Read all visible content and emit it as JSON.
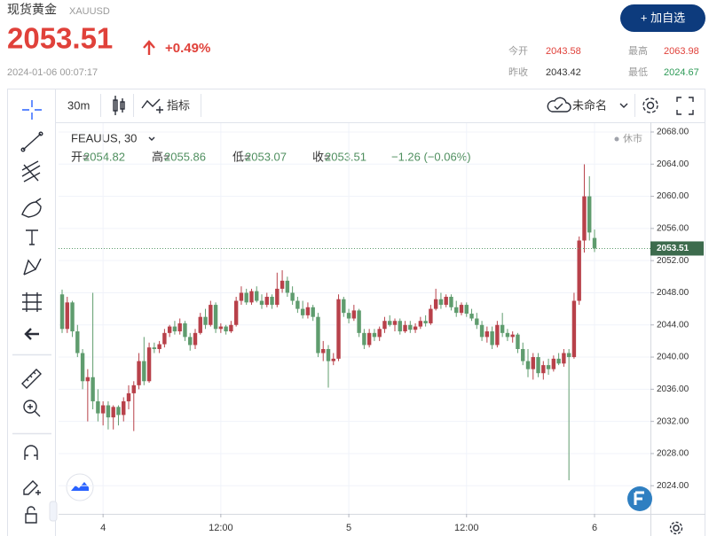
{
  "header": {
    "title": "现货黄金",
    "symbol": "XAUUSD",
    "price": 2053.51,
    "change": "+0.49%",
    "timestamp": "2024-01-06 00:07:17",
    "button": "+ 加自选",
    "stats": [
      {
        "label": "今开",
        "value": 2043.58
      },
      {
        "label": "最高",
        "value": 2063.98
      },
      {
        "label": "昨收",
        "value": 2043.42
      },
      {
        "label": "最低",
        "value": 2024.67
      }
    ]
  },
  "toolbar": {
    "interval": "30m",
    "indicators": "指标",
    "layout": "未命名"
  },
  "chart_data": {
    "type": "candlestick",
    "symbol_label": "FEAUUS, 30",
    "status": "休市",
    "legend_labels": [
      "开=",
      "高=",
      "低=",
      "收="
    ],
    "change_text": "−1.26 (−0.06%)",
    "up_color": "#b8414a",
    "down_color": "#5f9c6e",
    "grid": true,
    "ylim": [
      2020.5,
      2069.1
    ],
    "yticks": [
      {
        "value": 2024,
        "label": "2024.00"
      },
      {
        "value": 2028,
        "label": "2028.00"
      },
      {
        "value": 2032,
        "label": "2032.00"
      },
      {
        "value": 2036,
        "label": "2036.00"
      },
      {
        "value": 2040,
        "label": "2040.00"
      },
      {
        "value": 2044,
        "label": "2044.00"
      },
      {
        "value": 2048,
        "label": "2048.00"
      },
      {
        "value": 2052,
        "label": "2052.00"
      },
      {
        "value": 2056,
        "label": "2056.00"
      },
      {
        "value": 2060,
        "label": "2060.00"
      },
      {
        "value": 2064,
        "label": "2064.00"
      },
      {
        "value": 2068,
        "label": "2068.00"
      }
    ],
    "categories": [
      null,
      null,
      null,
      null,
      null,
      null,
      null,
      null,
      "4",
      null,
      null,
      null,
      null,
      null,
      null,
      null,
      null,
      null,
      null,
      null,
      null,
      null,
      null,
      null,
      null,
      null,
      null,
      null,
      null,
      null,
      null,
      "12:00",
      null,
      null,
      null,
      null,
      null,
      null,
      null,
      null,
      null,
      null,
      null,
      null,
      null,
      null,
      null,
      null,
      null,
      null,
      null,
      null,
      null,
      null,
      null,
      null,
      "5",
      null,
      null,
      null,
      null,
      null,
      null,
      null,
      null,
      null,
      null,
      null,
      null,
      null,
      null,
      null,
      null,
      null,
      null,
      null,
      null,
      null,
      null,
      "12:00",
      null,
      null,
      null,
      null,
      null,
      null,
      null,
      null,
      null,
      null,
      null,
      null,
      null,
      null,
      null,
      null,
      null,
      null,
      null,
      null,
      null,
      null,
      null,
      null,
      "6"
    ],
    "open": [
      2047.8,
      2043.5,
      2046.8,
      2043.2,
      2040.5,
      2037.0,
      2037.5,
      2034.5,
      2033.0,
      2034.0,
      2032.5,
      2033.8,
      2032.8,
      2034.5,
      2035.5,
      2036.5,
      2039.5,
      2037.0,
      2041.2,
      2041.0,
      2041.6,
      2043.0,
      2043.8,
      2043.2,
      2044.2,
      2042.5,
      2041.5,
      2043.0,
      2045.0,
      2044.0,
      2046.5,
      2043.5,
      2043.8,
      2043.2,
      2044.0,
      2047.0,
      2048.0,
      2046.8,
      2048.2,
      2047.0,
      2046.5,
      2047.5,
      2046.5,
      2048.5,
      2049.5,
      2048.0,
      2047.0,
      2046.0,
      2045.2,
      2046.2,
      2045.0,
      2040.5,
      2041.0,
      2039.5,
      2039.8,
      2047.2,
      2045.5,
      2044.8,
      2045.8,
      2043.0,
      2041.5,
      2043.0,
      2042.5,
      2043.5,
      2044.5,
      2044.0,
      2044.5,
      2043.2,
      2044.0,
      2043.4,
      2043.8,
      2044.5,
      2044.2,
      2046.0,
      2047.2,
      2046.5,
      2047.5,
      2046.2,
      2045.5,
      2046.5,
      2045.4,
      2044.8,
      2044.0,
      2042.5,
      2043.2,
      2041.5,
      2044.0,
      2043.0,
      2042.5,
      2042.8,
      2041.0,
      2039.5,
      2038.5,
      2040.0,
      2038.0,
      2039.0,
      2038.5,
      2039.8,
      2039.2,
      2040.5,
      2040.0,
      2047.0,
      2054.5,
      2060.0,
      2054.82
    ],
    "high": [
      2048.4,
      2047.5,
      2047.0,
      2044.0,
      2041.0,
      2038.5,
      2048.0,
      2036.0,
      2034.5,
      2034.5,
      2034.0,
      2034.0,
      2035.0,
      2036.5,
      2037.0,
      2040.5,
      2042.5,
      2041.8,
      2041.8,
      2042.0,
      2043.5,
      2044.0,
      2044.5,
      2044.8,
      2044.5,
      2043.0,
      2043.5,
      2045.5,
      2046.0,
      2047.0,
      2046.8,
      2044.2,
      2044.0,
      2044.5,
      2047.5,
      2048.8,
      2048.5,
      2048.5,
      2048.8,
      2047.8,
      2048.0,
      2047.8,
      2050.5,
      2050.8,
      2050.0,
      2048.8,
      2047.5,
      2047.0,
      2046.8,
      2046.5,
      2045.5,
      2042.0,
      2041.5,
      2040.5,
      2047.8,
      2047.5,
      2046.0,
      2046.5,
      2046.0,
      2043.5,
      2043.5,
      2043.5,
      2043.8,
      2045.0,
      2045.2,
      2044.8,
      2044.8,
      2044.5,
      2044.5,
      2044.2,
      2045.0,
      2045.2,
      2046.5,
      2048.5,
      2048.0,
      2047.8,
      2047.8,
      2047.0,
      2046.8,
      2046.8,
      2046.0,
      2045.5,
      2044.5,
      2043.8,
      2043.8,
      2044.5,
      2045.5,
      2043.5,
      2043.2,
      2043.0,
      2041.8,
      2041.0,
      2040.5,
      2040.5,
      2039.5,
      2039.8,
      2040.2,
      2040.5,
      2041.0,
      2041.0,
      2048.0,
      2055.0,
      2063.98,
      2062.5,
      2055.86
    ],
    "low": [
      2043.0,
      2043.0,
      2042.5,
      2040.0,
      2036.0,
      2032.0,
      2033.5,
      2032.0,
      2031.5,
      2031.0,
      2031.0,
      2031.5,
      2032.0,
      2033.5,
      2030.8,
      2036.0,
      2036.5,
      2036.8,
      2040.5,
      2040.5,
      2041.2,
      2042.5,
      2042.8,
      2042.8,
      2042.0,
      2040.8,
      2041.0,
      2042.8,
      2043.5,
      2043.8,
      2043.0,
      2043.0,
      2042.8,
      2043.0,
      2043.8,
      2046.5,
      2046.5,
      2046.5,
      2046.8,
      2046.0,
      2046.2,
      2046.0,
      2046.2,
      2048.0,
      2047.5,
      2046.5,
      2045.5,
      2044.8,
      2044.8,
      2044.5,
      2040.0,
      2039.5,
      2036.2,
      2039.0,
      2039.5,
      2045.0,
      2044.2,
      2044.5,
      2042.5,
      2041.0,
      2041.2,
      2042.0,
      2042.0,
      2043.0,
      2043.8,
      2043.2,
      2042.8,
      2043.0,
      2043.0,
      2043.0,
      2043.5,
      2043.8,
      2044.0,
      2045.8,
      2046.0,
      2046.2,
      2045.8,
      2045.0,
      2045.2,
      2045.0,
      2044.5,
      2043.5,
      2042.0,
      2041.8,
      2041.0,
      2041.2,
      2042.5,
      2042.0,
      2041.8,
      2040.5,
      2039.0,
      2037.5,
      2037.2,
      2037.5,
      2037.2,
      2037.8,
      2038.2,
      2039.0,
      2038.8,
      2024.67,
      2039.8,
      2046.5,
      2053.0,
      2054.5,
      2053.07
    ],
    "close": [
      2043.5,
      2046.8,
      2043.2,
      2040.5,
      2037.0,
      2037.5,
      2034.5,
      2033.0,
      2034.0,
      2032.5,
      2033.8,
      2032.8,
      2034.5,
      2035.5,
      2036.5,
      2039.5,
      2037.0,
      2041.2,
      2041.0,
      2041.6,
      2043.0,
      2043.8,
      2043.2,
      2044.2,
      2042.5,
      2041.5,
      2043.0,
      2045.0,
      2044.0,
      2046.5,
      2043.5,
      2043.8,
      2043.2,
      2044.0,
      2047.0,
      2048.0,
      2046.8,
      2048.2,
      2047.0,
      2046.5,
      2047.5,
      2046.5,
      2048.5,
      2049.5,
      2048.0,
      2047.0,
      2046.0,
      2045.2,
      2046.2,
      2045.0,
      2040.5,
      2041.0,
      2039.5,
      2039.8,
      2047.2,
      2045.5,
      2044.8,
      2045.8,
      2043.0,
      2041.5,
      2043.0,
      2042.5,
      2043.5,
      2044.5,
      2044.0,
      2044.5,
      2043.2,
      2044.0,
      2043.4,
      2043.8,
      2044.5,
      2044.2,
      2046.0,
      2047.2,
      2046.5,
      2047.5,
      2046.2,
      2045.5,
      2046.5,
      2045.4,
      2044.8,
      2044.0,
      2042.5,
      2043.2,
      2041.5,
      2044.0,
      2043.0,
      2042.5,
      2042.8,
      2041.0,
      2039.5,
      2038.5,
      2040.0,
      2038.0,
      2039.0,
      2038.5,
      2039.8,
      2039.2,
      2040.5,
      2040.0,
      2047.0,
      2054.5,
      2060.0,
      2055.5,
      2053.51
    ]
  }
}
